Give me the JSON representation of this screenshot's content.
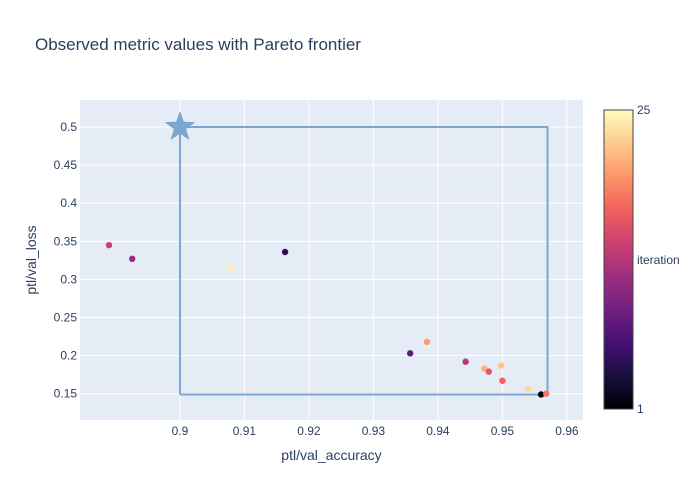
{
  "chart_data": {
    "type": "scatter",
    "title": "Observed metric values with Pareto frontier",
    "xlabel": "ptl/val_accuracy",
    "ylabel": "ptl/val_loss",
    "xlim": [
      0.8845,
      0.9625
    ],
    "ylim": [
      0.1155,
      0.5355
    ],
    "x_ticks": [
      0.9,
      0.91,
      0.92,
      0.93,
      0.94,
      0.95,
      0.96
    ],
    "y_ticks": [
      0.15,
      0.2,
      0.25,
      0.3,
      0.35,
      0.4,
      0.45,
      0.5
    ],
    "x_tick_labels": [
      "0.9",
      "0.91",
      "0.92",
      "0.93",
      "0.94",
      "0.95",
      "0.96"
    ],
    "y_tick_labels": [
      "0.15",
      "0.2",
      "0.25",
      "0.3",
      "0.35",
      "0.4",
      "0.45",
      "0.5"
    ],
    "grid": true,
    "background_color": "#e5ecf6",
    "points": [
      {
        "x": 0.889,
        "y": 0.345,
        "iteration": 14
      },
      {
        "x": 0.8926,
        "y": 0.327,
        "iteration": 11
      },
      {
        "x": 0.9078,
        "y": 0.315,
        "iteration": 24
      },
      {
        "x": 0.9163,
        "y": 0.336,
        "iteration": 5
      },
      {
        "x": 0.9357,
        "y": 0.203,
        "iteration": 8
      },
      {
        "x": 0.9383,
        "y": 0.218,
        "iteration": 20
      },
      {
        "x": 0.9443,
        "y": 0.192,
        "iteration": 13
      },
      {
        "x": 0.9472,
        "y": 0.183,
        "iteration": 21
      },
      {
        "x": 0.9479,
        "y": 0.179,
        "iteration": 16
      },
      {
        "x": 0.9498,
        "y": 0.187,
        "iteration": 22
      },
      {
        "x": 0.95,
        "y": 0.167,
        "iteration": 17
      },
      {
        "x": 0.954,
        "y": 0.156,
        "iteration": 23
      },
      {
        "x": 0.956,
        "y": 0.149,
        "iteration": 1
      },
      {
        "x": 0.9568,
        "y": 0.15,
        "iteration": 18
      }
    ],
    "pareto_frontier": {
      "x": [
        0.9,
        0.9,
        0.957,
        0.957,
        0.9
      ],
      "y": [
        0.149,
        0.5,
        0.5,
        0.149,
        0.149
      ],
      "color": "#7aa6d0"
    },
    "reference_point": {
      "x": 0.9,
      "y": 0.5,
      "marker": "star",
      "color": "#7aa6d0"
    },
    "colorbar": {
      "title": "iteration",
      "min": 1,
      "max": 25,
      "min_label": "1",
      "max_label": "25",
      "colorscale": [
        "#000004",
        "#180f3d",
        "#440f76",
        "#721f81",
        "#9e2f7f",
        "#cd4071",
        "#f1605d",
        "#fd9668",
        "#feca8d",
        "#fcfdbf"
      ]
    }
  }
}
